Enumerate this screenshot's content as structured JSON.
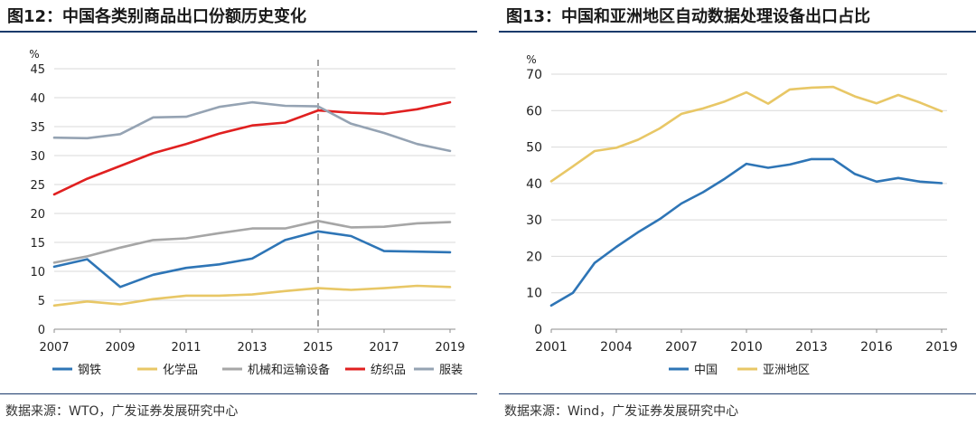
{
  "charts": [
    {
      "title": "图12：中国各类别商品出口份额历史变化",
      "source": "数据来源：WTO，广发证券发展研究中心",
      "chart_data": {
        "type": "line",
        "unit_label": "%",
        "x": [
          2007,
          2008,
          2009,
          2010,
          2011,
          2012,
          2013,
          2014,
          2015,
          2016,
          2017,
          2018,
          2019
        ],
        "x_ticks": [
          2007,
          2009,
          2011,
          2013,
          2015,
          2017,
          2019
        ],
        "ylim": [
          0,
          45
        ],
        "y_ticks": [
          0,
          5,
          10,
          15,
          20,
          25,
          30,
          35,
          40,
          45
        ],
        "vline_x": 2015,
        "grid": true,
        "legend_position": "bottom",
        "series": [
          {
            "name": "钢铁",
            "color": "#2e75b6",
            "values": [
              10.8,
              12.1,
              7.3,
              9.4,
              10.6,
              11.2,
              12.2,
              15.4,
              16.9,
              16.1,
              13.5,
              13.4,
              13.3
            ]
          },
          {
            "name": "化学品",
            "color": "#e8c766",
            "values": [
              4.1,
              4.8,
              4.3,
              5.2,
              5.8,
              5.8,
              6.0,
              6.6,
              7.1,
              6.8,
              7.1,
              7.5,
              7.3
            ]
          },
          {
            "name": "机械和运输设备",
            "color": "#a6a6a6",
            "values": [
              11.5,
              12.6,
              14.1,
              15.4,
              15.7,
              16.6,
              17.4,
              17.4,
              18.7,
              17.6,
              17.7,
              18.3,
              18.5
            ]
          },
          {
            "name": "纺织品",
            "color": "#e02020",
            "values": [
              23.3,
              26.0,
              28.2,
              30.4,
              32.0,
              33.8,
              35.2,
              35.7,
              37.8,
              37.4,
              37.2,
              38.0,
              39.2
            ]
          },
          {
            "name": "服装",
            "color": "#95a3b3",
            "values": [
              33.1,
              33.0,
              33.7,
              36.6,
              36.7,
              38.4,
              39.2,
              38.6,
              38.5,
              35.5,
              33.9,
              32.0,
              30.8
            ]
          }
        ]
      }
    },
    {
      "title": "图13：中国和亚洲地区自动数据处理设备出口占比",
      "source": "数据来源：Wind，广发证券发展研究中心",
      "chart_data": {
        "type": "line",
        "unit_label": "%",
        "x": [
          2001,
          2002,
          2003,
          2004,
          2005,
          2006,
          2007,
          2008,
          2009,
          2010,
          2011,
          2012,
          2013,
          2014,
          2015,
          2016,
          2017,
          2018,
          2019
        ],
        "x_ticks": [
          2001,
          2004,
          2007,
          2010,
          2013,
          2016,
          2019
        ],
        "ylim": [
          0,
          70
        ],
        "y_ticks": [
          0,
          10,
          20,
          30,
          40,
          50,
          60,
          70
        ],
        "grid": true,
        "legend_position": "bottom",
        "series": [
          {
            "name": "中国",
            "color": "#2e75b6",
            "values": [
              6.5,
              10.0,
              18.2,
              22.6,
              26.6,
              30.2,
              34.5,
              37.6,
              41.3,
              45.4,
              44.3,
              45.2,
              46.7,
              46.7,
              42.6,
              40.5,
              41.5,
              40.5,
              40.1
            ]
          },
          {
            "name": "亚洲地区",
            "color": "#e8c766",
            "values": [
              40.6,
              44.7,
              48.9,
              49.8,
              52.0,
              55.1,
              59.1,
              60.6,
              62.5,
              65.0,
              61.9,
              65.8,
              66.3,
              66.5,
              63.9,
              62.0,
              64.3,
              62.2,
              59.8
            ]
          }
        ]
      }
    }
  ]
}
